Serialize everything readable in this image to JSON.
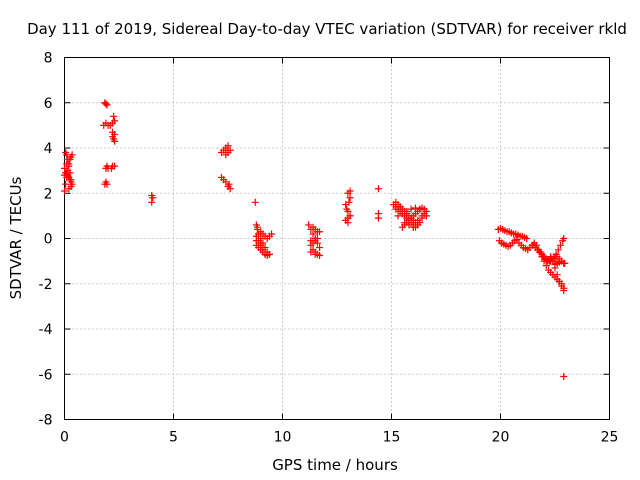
{
  "chart_data": {
    "type": "scatter",
    "title": "Day 111 of 2019, Sidereal Day-to-day VTEC variation (SDTVAR) for receiver rkld",
    "xlabel": "GPS time / hours",
    "ylabel": "SDTVAR / TECUs",
    "xlim": [
      0,
      25
    ],
    "ylim": [
      -8,
      8
    ],
    "xticks": [
      0,
      5,
      10,
      15,
      20,
      25
    ],
    "yticks": [
      -8,
      -6,
      -4,
      -2,
      0,
      2,
      4,
      6,
      8
    ],
    "grid": true,
    "marker": "+",
    "color": "#ff0000",
    "series": [
      {
        "name": "SDTVAR",
        "x": [
          0.0,
          0.05,
          0.1,
          0.15,
          0.2,
          0.25,
          0.3,
          0.35,
          0.05,
          0.1,
          0.15,
          0.2,
          0.25,
          0.3,
          0.0,
          0.05,
          0.1,
          0.15,
          0.2,
          0.25,
          0.3,
          0.35,
          0.0,
          0.1,
          0.2,
          0.3,
          1.85,
          1.9,
          1.95,
          1.8,
          1.9,
          2.0,
          2.1,
          2.2,
          2.25,
          2.3,
          2.2,
          2.25,
          2.3,
          2.2,
          2.3,
          1.9,
          1.95,
          2.0,
          2.15,
          2.2,
          2.3,
          1.85,
          1.9,
          1.95,
          4.0,
          4.05,
          4.0,
          7.2,
          7.3,
          7.4,
          7.5,
          7.6,
          7.4,
          7.5,
          7.2,
          7.3,
          7.4,
          7.5,
          7.6,
          7.55,
          8.75,
          8.8,
          8.85,
          8.9,
          9.0,
          9.1,
          9.2,
          9.3,
          9.4,
          8.8,
          8.9,
          9.0,
          9.1,
          9.2,
          9.3,
          9.4,
          8.8,
          8.9,
          9.0,
          9.1,
          9.2,
          8.85,
          9.0,
          9.1,
          9.2,
          9.3,
          9.4,
          9.5,
          8.8,
          9.0,
          11.2,
          11.3,
          11.4,
          11.5,
          11.6,
          11.7,
          11.3,
          11.4,
          11.5,
          11.6,
          11.7,
          11.3,
          11.4,
          11.5,
          11.6,
          11.7,
          11.4,
          11.5,
          11.6,
          11.3,
          11.5,
          12.9,
          13.0,
          13.1,
          12.95,
          13.05,
          13.1,
          13.0,
          13.1,
          13.0,
          12.9,
          13.0,
          13.1,
          14.4,
          14.4,
          14.4,
          15.1,
          15.2,
          15.3,
          15.4,
          15.5,
          15.6,
          15.7,
          15.8,
          15.9,
          16.0,
          15.2,
          15.3,
          15.4,
          15.5,
          15.6,
          15.7,
          15.8,
          15.9,
          16.0,
          16.1,
          16.2,
          15.5,
          15.6,
          15.7,
          15.8,
          15.9,
          16.0,
          16.1,
          16.2,
          16.3,
          16.4,
          16.5,
          16.6,
          16.0,
          16.1,
          16.2,
          16.3,
          16.4,
          16.5,
          16.3,
          16.1,
          15.9,
          15.7,
          15.5,
          15.3,
          15.2,
          15.4,
          15.6,
          15.8,
          16.0,
          16.2,
          16.4,
          16.6,
          19.9,
          20.0,
          20.1,
          20.2,
          20.3,
          20.4,
          20.5,
          20.6,
          20.7,
          20.8,
          20.9,
          21.0,
          21.1,
          21.2,
          19.95,
          20.05,
          20.15,
          20.25,
          20.35,
          20.45,
          20.55,
          20.65,
          20.75,
          20.85,
          20.95,
          21.05,
          21.15,
          21.25,
          21.35,
          21.45,
          21.55,
          21.65,
          21.75,
          21.85,
          21.95,
          22.05,
          22.15,
          22.25,
          22.35,
          22.45,
          22.55,
          22.65,
          22.75,
          22.85,
          22.9,
          21.5,
          21.6,
          21.7,
          21.8,
          21.9,
          22.0,
          22.1,
          22.2,
          22.3,
          22.4,
          22.5,
          22.6,
          22.7,
          22.8,
          22.9,
          21.8,
          21.9,
          22.0,
          22.1,
          22.2,
          22.3,
          22.4,
          22.5,
          22.6,
          22.7,
          22.8,
          22.9,
          22.3,
          22.4,
          22.5,
          22.6,
          22.7,
          22.8,
          22.9,
          22.95,
          22.8,
          22.7,
          22.6,
          22.5,
          22.9
        ],
        "y": [
          2.1,
          2.4,
          2.7,
          3.0,
          3.3,
          3.5,
          3.6,
          3.7,
          3.8,
          3.7,
          3.5,
          3.2,
          2.9,
          2.6,
          2.8,
          2.9,
          2.9,
          2.8,
          2.7,
          2.6,
          2.5,
          2.4,
          3.1,
          3.3,
          2.2,
          2.3,
          6.0,
          5.95,
          5.9,
          5.0,
          5.1,
          5.0,
          5.0,
          5.1,
          5.4,
          5.2,
          4.5,
          4.4,
          4.3,
          4.7,
          4.6,
          3.1,
          3.2,
          3.1,
          3.1,
          3.2,
          3.2,
          2.4,
          2.5,
          2.4,
          1.9,
          1.8,
          1.6,
          3.8,
          3.9,
          4.0,
          4.1,
          3.9,
          3.7,
          3.8,
          2.7,
          2.6,
          2.5,
          2.3,
          2.2,
          2.4,
          1.6,
          0.6,
          0.4,
          0.2,
          0.0,
          -0.2,
          -0.4,
          -0.6,
          -0.7,
          0.1,
          -0.1,
          -0.3,
          -0.5,
          -0.7,
          -0.75,
          -0.7,
          -0.3,
          -0.4,
          -0.5,
          -0.6,
          -0.7,
          0.5,
          0.3,
          0.2,
          0.1,
          0.0,
          0.1,
          0.2,
          -0.1,
          -0.2,
          0.6,
          0.4,
          0.2,
          0.0,
          -0.2,
          -0.4,
          -0.3,
          -0.5,
          -0.6,
          -0.7,
          -0.75,
          -0.1,
          -0.2,
          -0.1,
          0.0,
          0.3,
          0.5,
          0.4,
          0.3,
          -0.6,
          -0.7,
          0.8,
          0.9,
          1.0,
          1.3,
          1.6,
          1.8,
          2.0,
          2.1,
          0.7,
          1.5,
          1.2,
          1.0,
          2.2,
          1.1,
          0.9,
          1.5,
          1.4,
          1.3,
          1.2,
          1.1,
          1.0,
          0.9,
          0.8,
          0.7,
          0.6,
          1.6,
          1.5,
          1.4,
          1.3,
          1.2,
          1.1,
          1.0,
          0.9,
          0.8,
          0.7,
          0.6,
          0.5,
          0.6,
          0.7,
          0.8,
          0.9,
          1.0,
          1.1,
          1.2,
          1.3,
          1.35,
          1.3,
          1.2,
          0.5,
          0.5,
          0.6,
          0.7,
          0.9,
          1.1,
          1.3,
          1.35,
          1.3,
          1.2,
          1.1,
          1.0,
          1.3,
          1.4,
          0.7,
          0.6,
          0.5,
          0.8,
          1.0,
          1.0,
          0.4,
          0.45,
          0.4,
          0.35,
          0.3,
          0.3,
          0.25,
          0.2,
          0.2,
          0.15,
          0.1,
          0.1,
          0.05,
          0.0,
          -0.1,
          -0.2,
          -0.25,
          -0.3,
          -0.35,
          -0.3,
          -0.2,
          -0.1,
          -0.05,
          -0.2,
          -0.3,
          -0.4,
          -0.45,
          -0.5,
          -0.4,
          -0.3,
          -0.2,
          -0.3,
          -0.5,
          -0.6,
          -0.8,
          -0.9,
          -1.0,
          -1.0,
          -0.9,
          -0.8,
          -0.7,
          -0.5,
          -0.3,
          -0.1,
          0.0,
          -0.3,
          -0.4,
          -0.5,
          -0.6,
          -0.7,
          -0.8,
          -0.9,
          -0.95,
          -1.0,
          -1.0,
          -0.9,
          -0.8,
          -0.9,
          -1.0,
          -1.1,
          -0.6,
          -0.8,
          -1.0,
          -1.2,
          -1.4,
          -1.5,
          -1.6,
          -1.7,
          -1.8,
          -1.9,
          -2.0,
          -2.2,
          -0.8,
          -1.0,
          -1.3,
          -1.6,
          -1.9,
          -2.1,
          -2.3,
          -1.1,
          -1.0,
          -1.05,
          -1.1,
          -1.15,
          -6.1
        ]
      }
    ]
  }
}
